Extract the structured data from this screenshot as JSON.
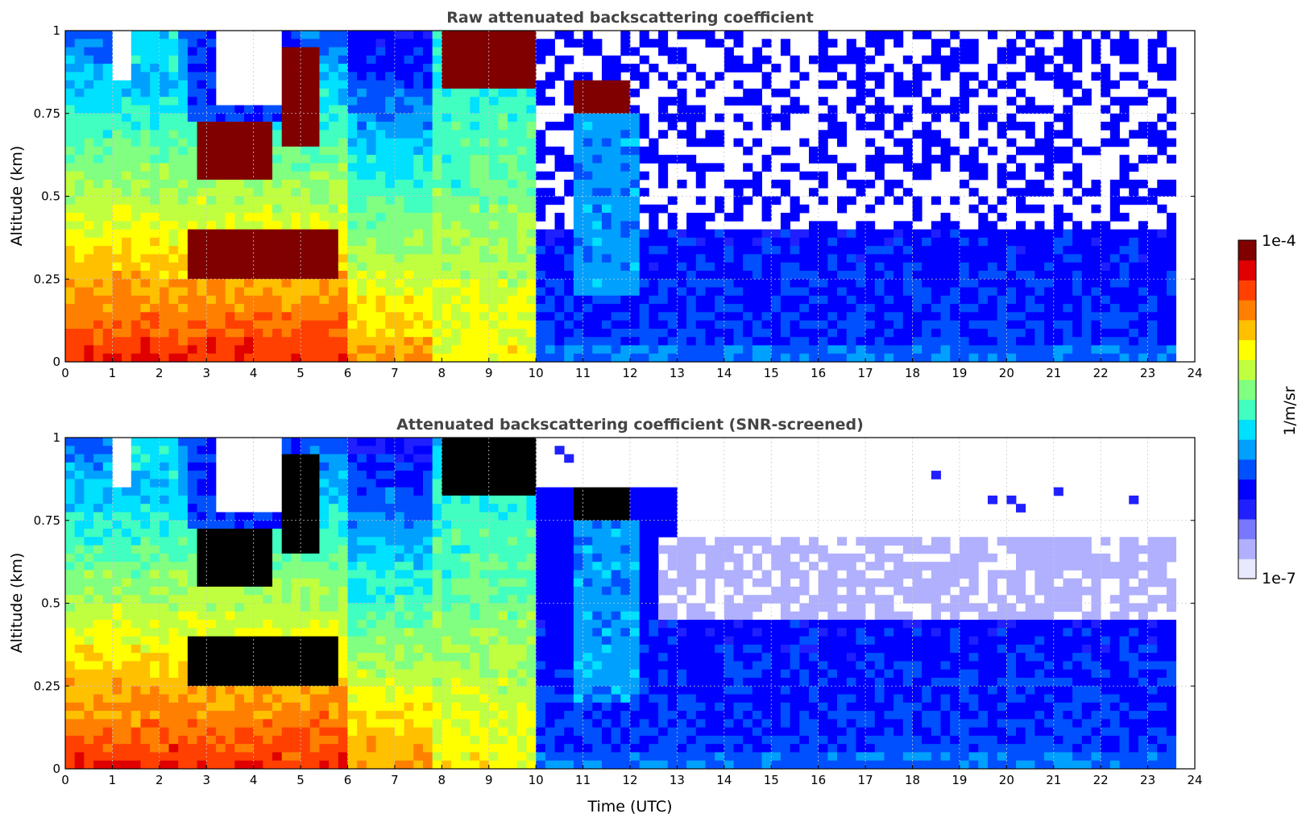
{
  "chart_data": [
    {
      "type": "heatmap",
      "title": "Raw attenuated backscattering coefficient",
      "xlabel": "",
      "ylabel": "Altitude (km)",
      "xlim": [
        0,
        24
      ],
      "ylim": [
        0,
        1
      ],
      "xticks": [
        "0",
        "1",
        "2",
        "3",
        "4",
        "5",
        "6",
        "7",
        "8",
        "9",
        "10",
        "11",
        "12",
        "13",
        "14",
        "15",
        "16",
        "17",
        "18",
        "19",
        "20",
        "21",
        "22",
        "23",
        "24"
      ],
      "yticks": [
        "0",
        "0.25",
        "0.5",
        "0.75",
        "1"
      ],
      "grid": true,
      "data_end_time": 23.55,
      "colorscale": "jet",
      "scale": "log",
      "features": [
        {
          "name": "surface aerosol layer",
          "time": [
            0,
            7.8
          ],
          "altitude": [
            0,
            0.35
          ],
          "level": "high"
        },
        {
          "name": "cloud layer",
          "time": [
            2.5,
            5.8
          ],
          "altitude": [
            0.25,
            0.4
          ],
          "level": "saturated"
        },
        {
          "name": "elevated cloud",
          "time": [
            8.0,
            9.8
          ],
          "altitude": [
            0.82,
            1.0
          ],
          "level": "saturated"
        },
        {
          "name": "elevated cloud",
          "time": [
            10.8,
            12.0
          ],
          "altitude": [
            0.76,
            0.85
          ],
          "level": "saturated"
        },
        {
          "name": "clear boundary layer",
          "time": [
            10.0,
            23.55
          ],
          "altitude": [
            0,
            0.4
          ],
          "level": "low"
        },
        {
          "name": "noise",
          "time": [
            9.8,
            23.55
          ],
          "altitude": [
            0.4,
            1.0
          ],
          "level": "noise"
        }
      ]
    },
    {
      "type": "heatmap",
      "title": "Attenuated backscattering coefficient (SNR-screened)",
      "xlabel": "Time (UTC)",
      "ylabel": "Altitude (km)",
      "xlim": [
        0,
        24
      ],
      "ylim": [
        0,
        1
      ],
      "xticks": [
        "0",
        "1",
        "2",
        "3",
        "4",
        "5",
        "6",
        "7",
        "8",
        "9",
        "10",
        "11",
        "12",
        "13",
        "14",
        "15",
        "16",
        "17",
        "18",
        "19",
        "20",
        "21",
        "22",
        "23",
        "24"
      ],
      "yticks": [
        "0",
        "0.25",
        "0.5",
        "0.75",
        "1"
      ],
      "grid": true,
      "data_end_time": 23.55,
      "colorscale": "jet",
      "scale": "log",
      "note_color_black": "#000000",
      "features": [
        {
          "name": "surface aerosol layer",
          "time": [
            0,
            7.8
          ],
          "altitude": [
            0,
            0.35
          ],
          "level": "high"
        },
        {
          "name": "cloud layer (saturated, black)",
          "time": [
            2.5,
            5.8
          ],
          "altitude": [
            0.25,
            0.4
          ],
          "level": "black"
        },
        {
          "name": "elevated cloud (black)",
          "time": [
            8.0,
            9.8
          ],
          "altitude": [
            0.82,
            1.0
          ],
          "level": "black"
        },
        {
          "name": "boundary layer",
          "time": [
            10.0,
            23.55
          ],
          "altitude": [
            0,
            0.45
          ],
          "level": "low"
        },
        {
          "name": "screened faint aerosol",
          "time": [
            13.0,
            23.55
          ],
          "altitude": [
            0.45,
            0.7
          ],
          "level": "faint"
        }
      ]
    }
  ],
  "colorbar": {
    "label": "1/m/sr",
    "max_label": "1e-4",
    "min_label": "1e-7",
    "colors": [
      "#e8e8ff",
      "#b0b0ff",
      "#7878ff",
      "#2020ff",
      "#0000ff",
      "#0050ff",
      "#00a0ff",
      "#00e0ff",
      "#40ffc0",
      "#80ff80",
      "#c0ff40",
      "#ffff00",
      "#ffc000",
      "#ff8000",
      "#ff4000",
      "#e00000",
      "#800000"
    ]
  }
}
